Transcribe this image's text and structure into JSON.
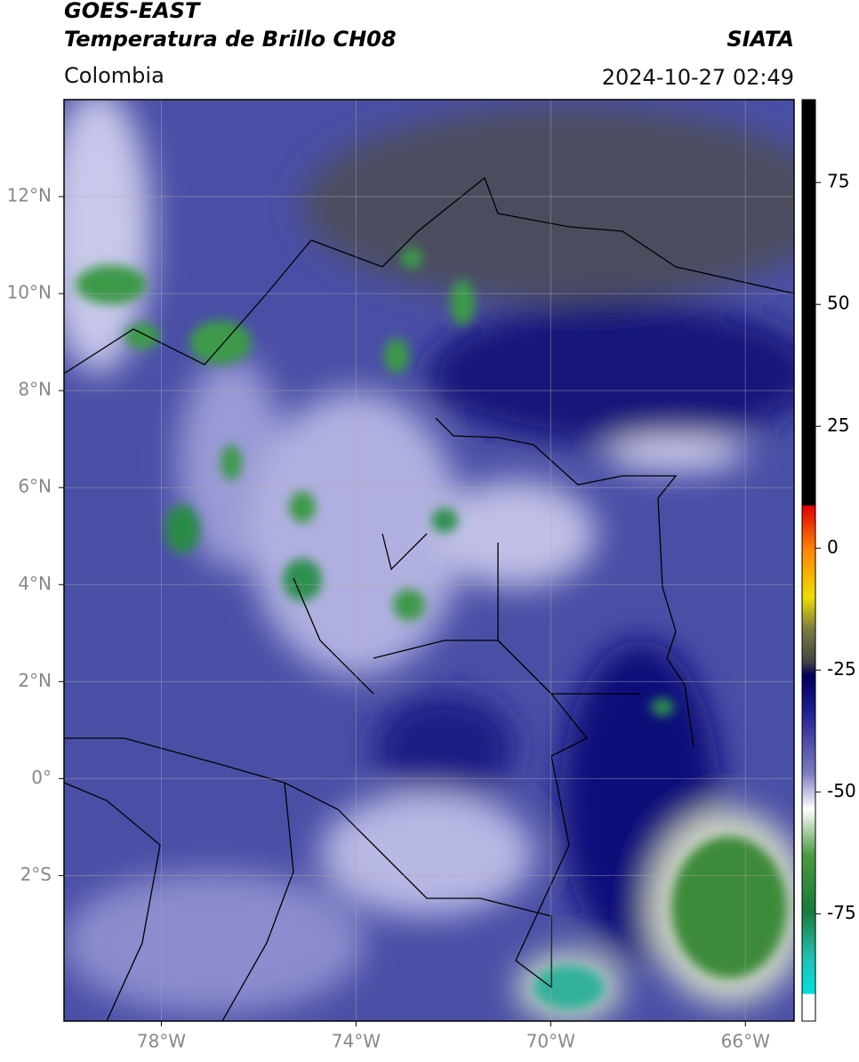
{
  "chart_data": {
    "type": "map",
    "title": "GOES-EAST",
    "subtitle": "Temperatura de Brillo CH08",
    "source": "SIATA",
    "region": "Colombia",
    "datetime": "2024-10-27 02:49",
    "xlim": [
      -80,
      -65
    ],
    "ylim": [
      -5,
      14
    ],
    "xticks": [
      {
        "value": -78,
        "label": "78°W"
      },
      {
        "value": -74,
        "label": "74°W"
      },
      {
        "value": -70,
        "label": "70°W"
      },
      {
        "value": -66,
        "label": "66°W"
      }
    ],
    "yticks": [
      {
        "value": -2,
        "label": "2°S"
      },
      {
        "value": 0,
        "label": "0°"
      },
      {
        "value": 2,
        "label": "2°N"
      },
      {
        "value": 4,
        "label": "4°N"
      },
      {
        "value": 6,
        "label": "6°N"
      },
      {
        "value": 8,
        "label": "8°N"
      },
      {
        "value": 10,
        "label": "10°N"
      },
      {
        "value": 12,
        "label": "12°N"
      }
    ],
    "grid": true,
    "clim": [
      -97,
      92
    ],
    "cticks": [
      75,
      50,
      25,
      0,
      -25,
      -50,
      -75
    ]
  }
}
